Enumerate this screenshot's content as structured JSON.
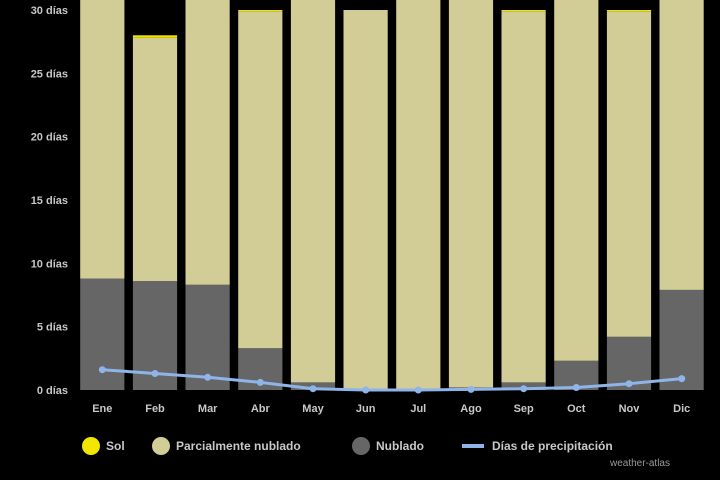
{
  "chart_data": {
    "type": "bar",
    "stacked": true,
    "categories": [
      "Ene",
      "Feb",
      "Mar",
      "Abr",
      "May",
      "Jun",
      "Jul",
      "Ago",
      "Sep",
      "Oct",
      "Nov",
      "Dic"
    ],
    "y_tick_labels": [
      "0 días",
      "5 días",
      "10 días",
      "15 días",
      "20 días",
      "25 días",
      "30 días"
    ],
    "ylim": [
      0,
      30
    ],
    "series": [
      {
        "name": "Nublado",
        "kind": "bar",
        "color": "#666666",
        "values": [
          8.8,
          8.6,
          8.3,
          3.3,
          0.6,
          0.1,
          0.05,
          0.2,
          0.6,
          2.3,
          4.2,
          7.9
        ]
      },
      {
        "name": "Parcialmente nublado",
        "kind": "bar",
        "color": "#d2cc96",
        "values": [
          22.2,
          19.2,
          22.7,
          26.6,
          30.4,
          29.9,
          30.9,
          30.8,
          29.3,
          28.7,
          25.7,
          23.1
        ]
      },
      {
        "name": "Sol",
        "kind": "bar",
        "color": "#f2e600",
        "values": [
          0,
          0.2,
          0,
          0.1,
          0,
          0,
          0.05,
          0,
          0.1,
          0,
          0.1,
          0
        ]
      },
      {
        "name": "Días de precipitación",
        "kind": "line",
        "color": "#8fb4ea",
        "values": [
          1.6,
          1.3,
          1.0,
          0.6,
          0.1,
          0,
          0,
          0.05,
          0.1,
          0.2,
          0.5,
          0.9
        ]
      }
    ],
    "legend_position": "bottom",
    "grid": false,
    "credit": "weather-atlas"
  }
}
